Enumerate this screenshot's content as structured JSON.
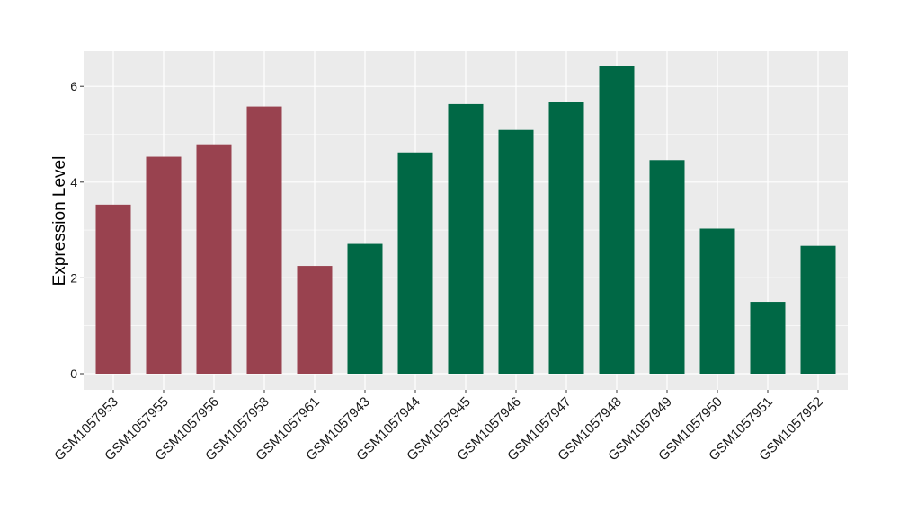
{
  "chart_data": {
    "type": "bar",
    "title": "",
    "xlabel": "",
    "ylabel": "Expression Level",
    "ylim": [
      0,
      6.7
    ],
    "yticks": [
      0,
      2,
      4,
      6
    ],
    "grid": true,
    "categories": [
      "GSM1057953",
      "GSM1057955",
      "GSM1057956",
      "GSM1057958",
      "GSM1057961",
      "GSM1057943",
      "GSM1057944",
      "GSM1057945",
      "GSM1057946",
      "GSM1057947",
      "GSM1057948",
      "GSM1057949",
      "GSM1057950",
      "GSM1057951",
      "GSM1057952"
    ],
    "values": [
      3.53,
      4.53,
      4.79,
      5.58,
      2.25,
      2.71,
      4.62,
      5.63,
      5.09,
      5.67,
      6.43,
      4.46,
      3.03,
      1.5,
      2.67
    ],
    "groups": [
      "a",
      "a",
      "a",
      "a",
      "a",
      "b",
      "b",
      "b",
      "b",
      "b",
      "b",
      "b",
      "b",
      "b",
      "b"
    ],
    "group_colors": {
      "a": "#99424f",
      "b": "#006845"
    },
    "panel_background": "#ebebeb",
    "grid_color": "#ffffff"
  }
}
